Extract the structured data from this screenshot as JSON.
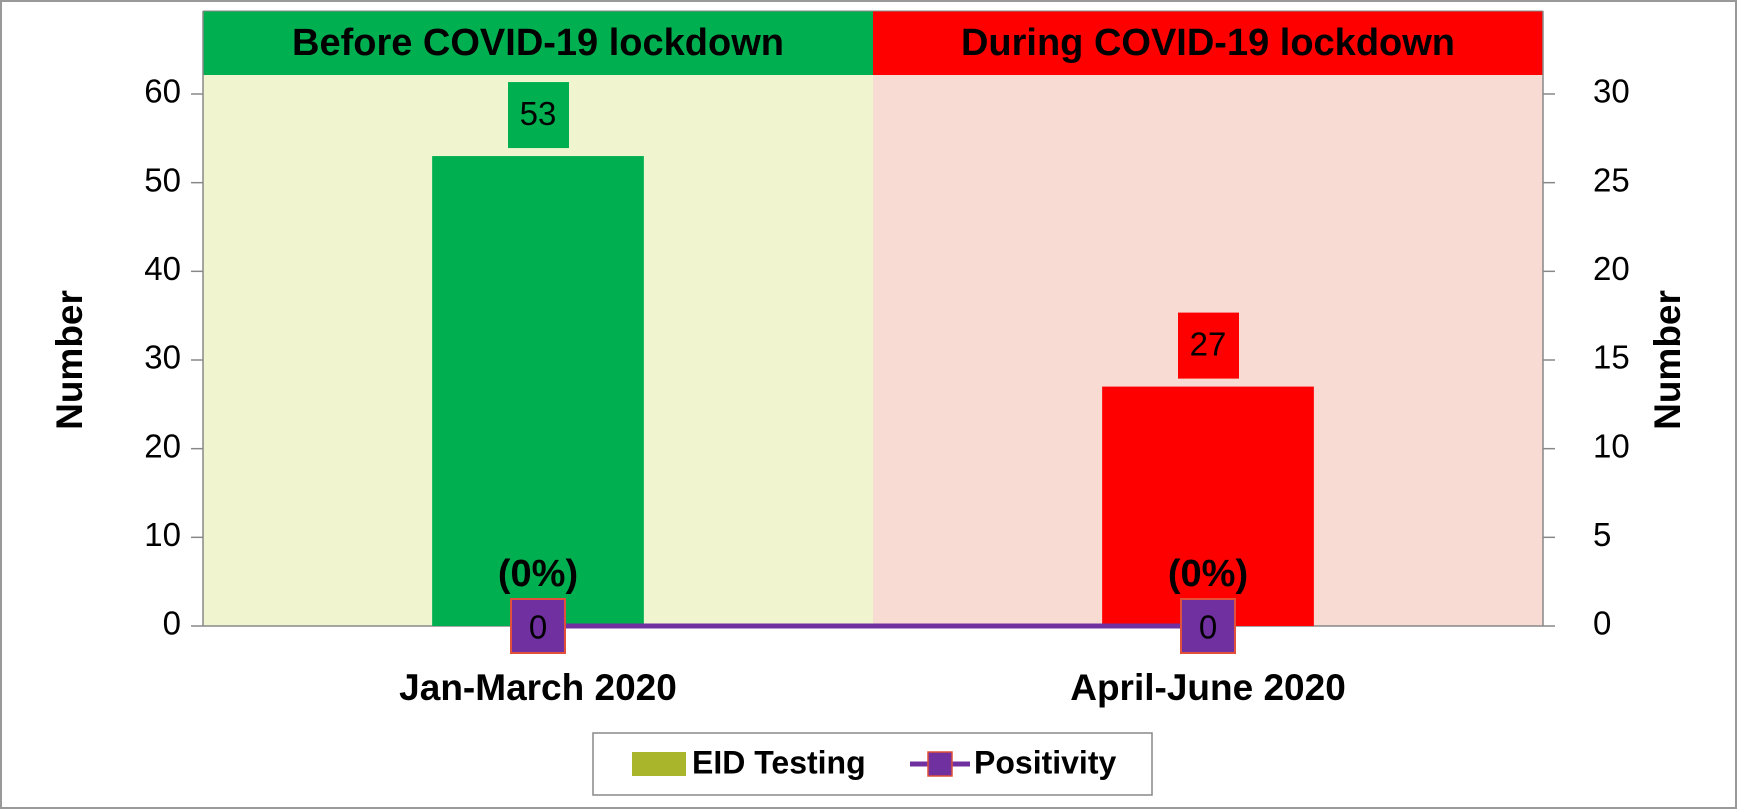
{
  "chart_data": {
    "type": "bar",
    "categories": [
      "Jan-March 2020",
      "April-June 2020"
    ],
    "regions": [
      {
        "label": "Before COVID-19 lockdown",
        "color": "#00b050",
        "background": "#f0f4cf"
      },
      {
        "label": "During COVID-19 lockdown",
        "color": "#ff0000",
        "background": "#f8dbd3"
      }
    ],
    "series": [
      {
        "name": "EID Testing",
        "color": "#a9b52a",
        "bar_colors": [
          "#00b050",
          "#ff0000"
        ],
        "values": [
          53,
          27
        ]
      },
      {
        "name": "Positivity",
        "type": "line",
        "axis": "y2",
        "color": "#7030a0",
        "values": [
          0,
          0
        ],
        "annotations": [
          "(0%)",
          "(0%)"
        ]
      }
    ],
    "ylabel": "Number",
    "y2label": "Number",
    "ylim": [
      0,
      60
    ],
    "yticks": [
      0,
      10,
      20,
      30,
      40,
      50,
      60
    ],
    "y2lim": [
      0,
      30
    ],
    "y2ticks": [
      0,
      5,
      10,
      15,
      20,
      25,
      30
    ],
    "legend": "bottom"
  }
}
